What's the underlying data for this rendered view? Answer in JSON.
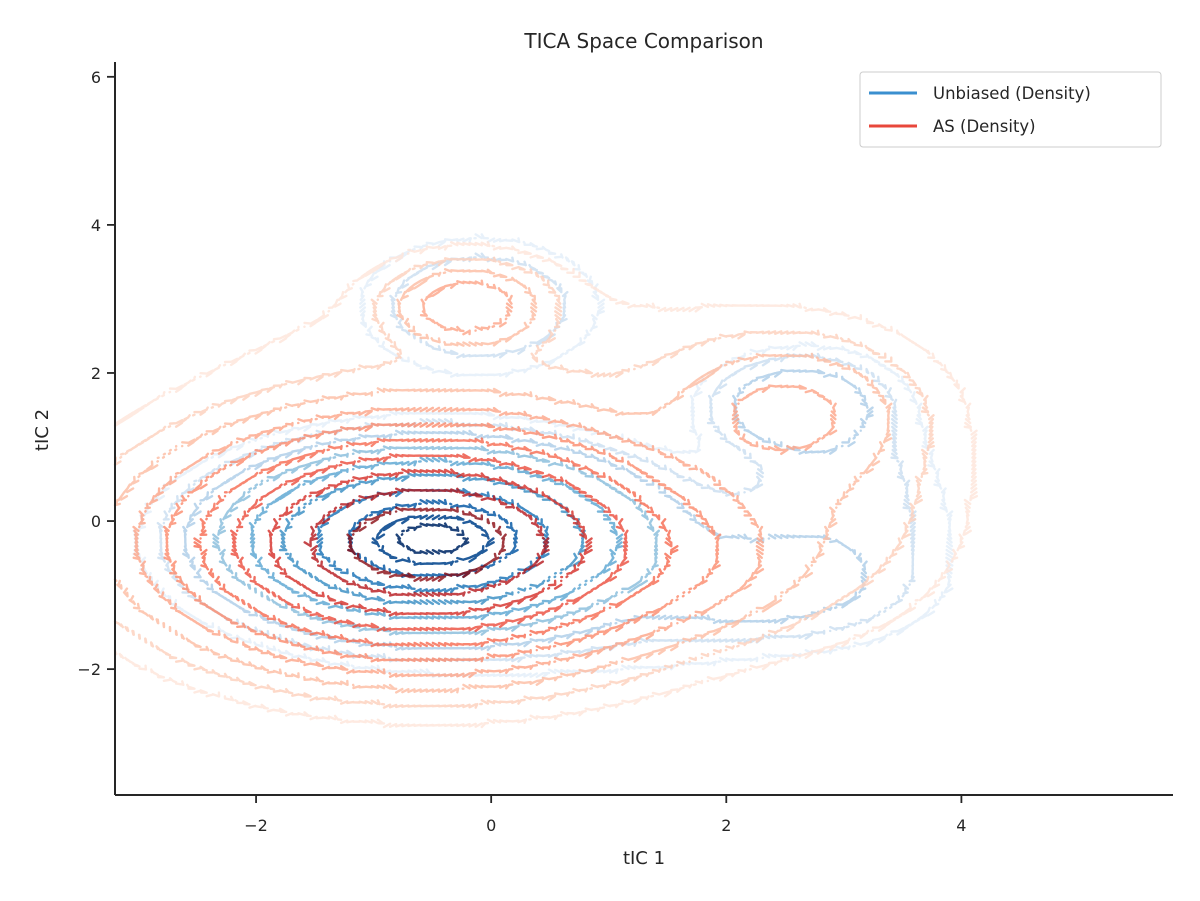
{
  "chart_data": {
    "type": "contour",
    "title": "TICA Space Comparison",
    "xlabel": "tIC 1",
    "ylabel": "tIC 2",
    "xlim": [
      -3.2,
      5.8
    ],
    "ylim": [
      -3.7,
      6.2
    ],
    "xticks": [
      -2,
      0,
      2,
      4
    ],
    "yticks": [
      -2,
      0,
      2,
      4,
      6
    ],
    "xtick_labels": [
      "−2",
      "0",
      "2",
      "4"
    ],
    "ytick_labels": [
      "−2",
      "0",
      "2",
      "4",
      "6"
    ],
    "grid": false,
    "legend_position": "top-right",
    "levels": 10,
    "series": [
      {
        "name": "Unbiased (Density)",
        "color": "#3a8fcf",
        "colormap": [
          "#e6f0fa",
          "#cfe1f2",
          "#b5d2ea",
          "#93c3df",
          "#6aaed6",
          "#4a98c9",
          "#2e7ebc",
          "#1764ab",
          "#0a4a90",
          "#08306b"
        ],
        "components": [
          {
            "mx": -0.5,
            "my": -0.25,
            "sx": 0.7,
            "sy": 0.48,
            "w": 1.0
          },
          {
            "mx": 2.25,
            "my": -0.85,
            "sx": 0.55,
            "sy": 0.32,
            "w": 0.025
          },
          {
            "mx": 2.6,
            "my": 1.55,
            "sx": 0.38,
            "sy": 0.34,
            "w": 0.03
          },
          {
            "mx": -0.1,
            "my": 2.9,
            "sx": 0.55,
            "sy": 0.5,
            "w": 0.012
          },
          {
            "mx": 3.0,
            "my": 0.4,
            "sx": 0.45,
            "sy": 0.9,
            "w": 0.008
          },
          {
            "mx": 0.8,
            "my": -0.6,
            "sx": 1.6,
            "sy": 0.8,
            "w": 0.01
          }
        ],
        "thresholds": [
          0.0022,
          0.005,
          0.012,
          0.035,
          0.09,
          0.2,
          0.38,
          0.6,
          0.8,
          0.93
        ]
      },
      {
        "name": "AS (Density)",
        "color": "#e8473b",
        "colormap": [
          "#fee5d9",
          "#fdd0bc",
          "#fcbba1",
          "#fca487",
          "#fb8a6b",
          "#f6694f",
          "#eb4b3b",
          "#d42c25",
          "#b5171c",
          "#8a0a12"
        ],
        "components": [
          {
            "mx": -0.55,
            "my": -0.3,
            "sx": 1.0,
            "sy": 0.72,
            "w": 1.0
          },
          {
            "mx": -0.2,
            "my": 2.9,
            "sx": 0.35,
            "sy": 0.3,
            "w": 0.08
          },
          {
            "mx": 2.5,
            "my": 1.5,
            "sx": 0.6,
            "sy": 0.55,
            "w": 0.05
          },
          {
            "mx": 1.6,
            "my": -0.55,
            "sx": 0.6,
            "sy": 0.55,
            "w": 0.04
          },
          {
            "mx": 2.8,
            "my": 0.3,
            "sx": 0.7,
            "sy": 1.0,
            "w": 0.018
          },
          {
            "mx": 0.0,
            "my": 0.8,
            "sx": 1.6,
            "sy": 1.6,
            "w": 0.012
          }
        ],
        "thresholds": [
          0.004,
          0.011,
          0.025,
          0.05,
          0.09,
          0.16,
          0.27,
          0.42,
          0.62,
          0.82
        ]
      }
    ]
  }
}
